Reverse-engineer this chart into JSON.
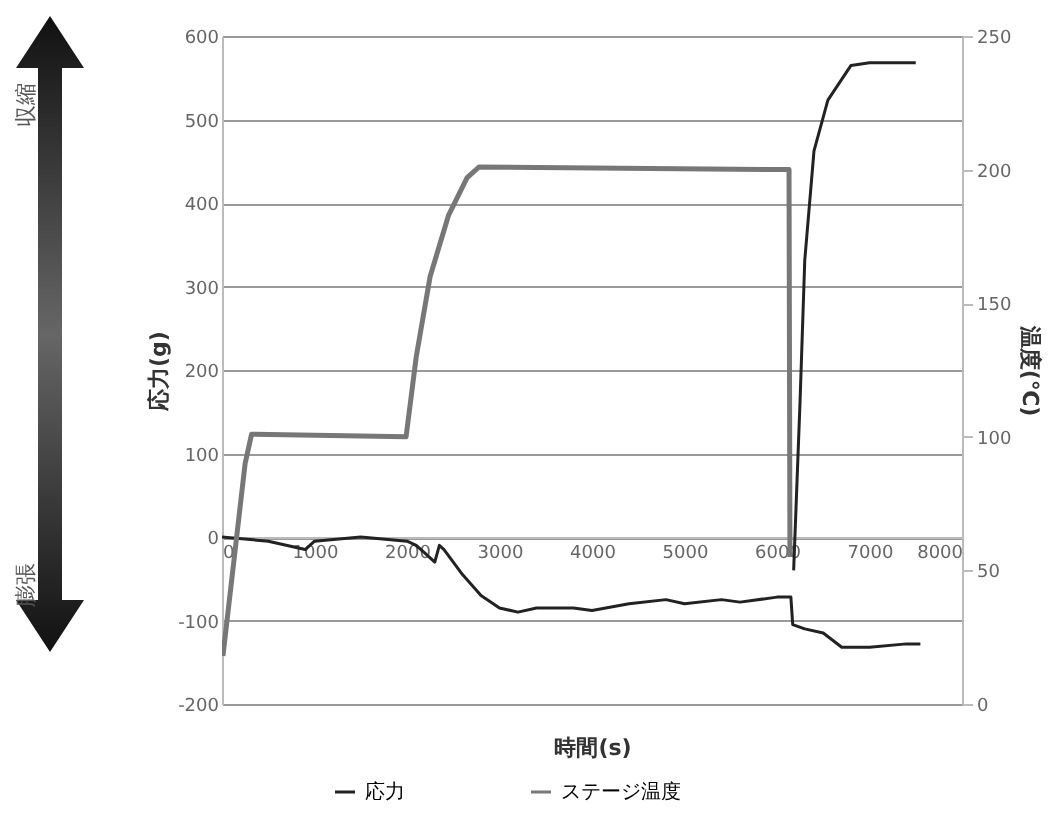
{
  "chart_data": {
    "type": "line",
    "xlabel": "時間(s)",
    "ylabel": "応力(g)",
    "y2label": "温度(℃)",
    "xlim": [
      0,
      8000
    ],
    "xticks": [
      0,
      1000,
      2000,
      3000,
      4000,
      5000,
      6000,
      7000,
      8000
    ],
    "ylim": [
      -200,
      600
    ],
    "yticks": [
      -200,
      -100,
      0,
      100,
      200,
      300,
      400,
      500,
      600
    ],
    "y2lim": [
      0,
      250
    ],
    "y2ticks": [
      0,
      50,
      100,
      150,
      200,
      250
    ],
    "grid": "y",
    "legend": "bottom",
    "marker": "none",
    "line_style": "solid",
    "annotations": [
      "収縮",
      "膨張"
    ],
    "series": [
      {
        "name": "応力",
        "color": "#222222",
        "x": [
          0,
          500,
          900,
          1000,
          1500,
          2000,
          2100,
          2200,
          2300,
          2350,
          2400,
          2600,
          2800,
          3000,
          3200,
          3400,
          3800,
          4000,
          4400,
          4800,
          5000,
          5400,
          5600,
          6000,
          6150,
          6170,
          6300,
          6500,
          6700,
          7000,
          7400,
          7550
        ],
        "values": [
          0,
          -5,
          -15,
          -5,
          0,
          -5,
          -10,
          -20,
          -30,
          -10,
          -15,
          -45,
          -70,
          -85,
          -90,
          -85,
          -85,
          -88,
          -80,
          -75,
          -80,
          -75,
          -78,
          -72,
          -72,
          -105,
          -110,
          -115,
          -132,
          -132,
          -128,
          -128
        ]
      },
      {
        "name": "ステージ温度",
        "color": "#777777",
        "axis": "y2",
        "x": [
          10,
          150,
          250,
          320,
          1990,
          2100,
          2250,
          2450,
          2650,
          2780,
          6100,
          6130,
          6140
        ],
        "values": [
          18,
          60,
          90,
          101,
          100,
          130,
          160,
          183,
          197,
          201,
          200,
          200,
          55
        ]
      },
      {
        "color": "#222222",
        "axis": "y2",
        "x": [
          6180,
          6250,
          6300,
          6400,
          6550,
          6800,
          7000,
          7500
        ],
        "values": [
          50,
          114,
          166,
          207,
          226,
          239,
          240,
          240
        ]
      }
    ]
  }
}
